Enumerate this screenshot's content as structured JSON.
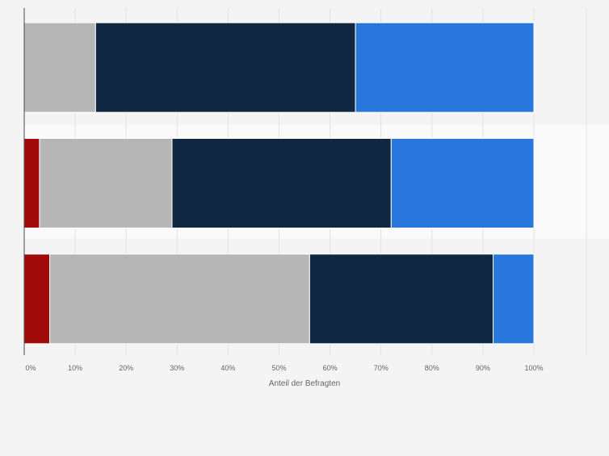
{
  "chart_data": {
    "type": "bar",
    "orientation": "horizontal",
    "stacked": true,
    "categories": [
      "",
      "",
      ""
    ],
    "series": [
      {
        "color": "#a20a0a",
        "values": [
          0,
          3,
          5
        ]
      },
      {
        "color": "#b6b6b6",
        "values": [
          14,
          26,
          51
        ]
      },
      {
        "color": "#0f2740",
        "values": [
          51,
          43,
          36
        ]
      },
      {
        "color": "#2877dd",
        "values": [
          35,
          28,
          8
        ]
      }
    ],
    "xlabel": "Anteil der Befragten",
    "ylabel": "",
    "xlim": [
      0,
      100
    ],
    "xticks": [
      "0%",
      "10%",
      "20%",
      "30%",
      "40%",
      "50%",
      "60%",
      "70%",
      "80%",
      "90%",
      "100%"
    ],
    "grid": true,
    "legend": "none"
  }
}
